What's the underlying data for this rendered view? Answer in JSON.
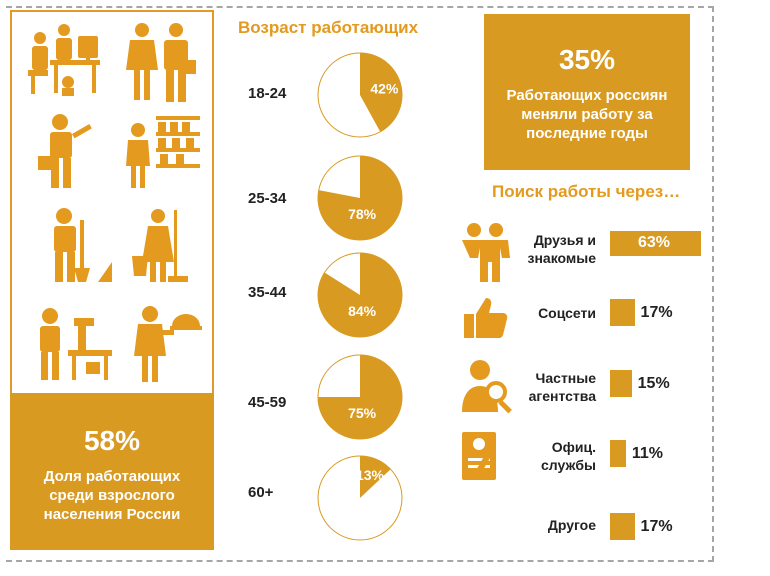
{
  "left": {
    "percent": "58%",
    "caption_lines": [
      "Доля работающих",
      "среди взрослого",
      "населения России"
    ]
  },
  "top_right": {
    "percent": "35%",
    "caption_lines": [
      "Работающих  россиян",
      "меняли работу за",
      "последние годы"
    ]
  },
  "colors": {
    "accent": "#d99a22",
    "title": "#e39a1f",
    "pie_rest": "#ffffff",
    "pie_stroke": "#d99a22"
  },
  "chart_data": [
    {
      "type": "pie",
      "title": "Возраст работающих",
      "categories": [
        "18-24",
        "25-34",
        "35-44",
        "45-59",
        "60+"
      ],
      "values": [
        42,
        78,
        84,
        75,
        13
      ],
      "labels": [
        "42%",
        "78%",
        "84%",
        "75%",
        "13%"
      ]
    },
    {
      "type": "bar",
      "title": "Поиск работы через…",
      "categories": [
        "Друзья и знакомые",
        "Соцсети",
        "Частные агентства",
        "Офиц. службы",
        "Другое"
      ],
      "category_lines": [
        [
          "Друзья и",
          "знакомые"
        ],
        [
          "Соцсети"
        ],
        [
          "Частные",
          "агентства"
        ],
        [
          "Офиц.",
          "службы"
        ],
        [
          "Другое"
        ]
      ],
      "values": [
        63,
        17,
        15,
        11,
        17
      ],
      "labels": [
        "63%",
        "17%",
        "15%",
        "11%",
        "17%"
      ],
      "icons": [
        "friends-icon",
        "thumbs-up-icon",
        "agent-search-icon",
        "document-icon",
        "none"
      ]
    }
  ],
  "icons": [
    "office-workers-icon",
    "business-couple-icon",
    "repairman-icon",
    "shop-assistant-icon",
    "gardener-icon",
    "cleaner-icon",
    "factory-worker-icon",
    "waiter-icon"
  ]
}
